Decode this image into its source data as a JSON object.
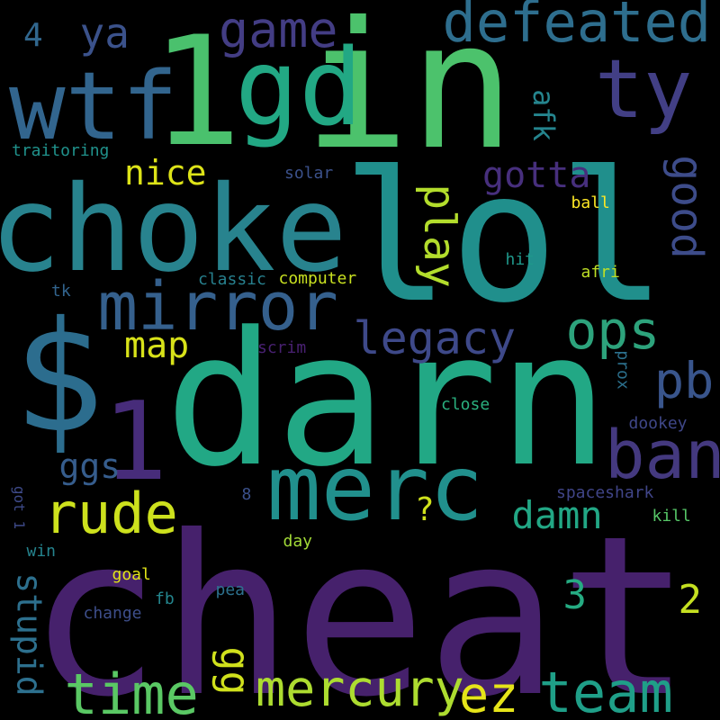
{
  "background": "#000000",
  "words": [
    {
      "text": "cheat",
      "color": "#46216c"
    },
    {
      "text": "darn",
      "color": "#22a885"
    },
    {
      "text": "lol",
      "color": "#208f8c"
    },
    {
      "text": "in",
      "color": "#4cc26c"
    },
    {
      "text": "$",
      "color": "#2c6d8e"
    },
    {
      "text": "1",
      "color": "#4ac16d"
    },
    {
      "text": "choke",
      "color": "#28838e"
    },
    {
      "text": "gd",
      "color": "#22a884"
    },
    {
      "text": "wtf",
      "color": "#32658e"
    },
    {
      "text": "merc",
      "color": "#21908d"
    },
    {
      "text": "mirror",
      "color": "#35608d"
    },
    {
      "text": "1",
      "color": "#472c7a"
    },
    {
      "text": "ty",
      "color": "#423f85"
    },
    {
      "text": "ban",
      "color": "#44397f"
    },
    {
      "text": "defeated",
      "color": "#2e6e8e"
    },
    {
      "text": "team",
      "color": "#1f9f88"
    },
    {
      "text": "time",
      "color": "#5ac864"
    },
    {
      "text": "rude",
      "color": "#cde11d"
    },
    {
      "text": "mercury",
      "color": "#addc30"
    },
    {
      "text": "game",
      "color": "#433d84"
    },
    {
      "text": "ops",
      "color": "#2da37c"
    },
    {
      "text": "legacy",
      "color": "#3e4989"
    },
    {
      "text": "ez",
      "color": "#e5e419"
    },
    {
      "text": "pb",
      "color": "#39558c"
    },
    {
      "text": "good",
      "color": "#3d4c8a"
    },
    {
      "text": "play",
      "color": "#b3dd2c"
    },
    {
      "text": "damn",
      "color": "#22a785"
    },
    {
      "text": "ya",
      "color": "#3b528b"
    },
    {
      "text": "stupid",
      "color": "#2d708e"
    },
    {
      "text": "gotta",
      "color": "#472f7d"
    },
    {
      "text": "map",
      "color": "#d8e219"
    },
    {
      "text": "gg",
      "color": "#d0e11c"
    },
    {
      "text": "ggs",
      "color": "#365d8d"
    },
    {
      "text": "nice",
      "color": "#dde318"
    },
    {
      "text": "afk",
      "color": "#25858e"
    },
    {
      "text": "3",
      "color": "#25ab82"
    },
    {
      "text": "2",
      "color": "#c5e021"
    },
    {
      "text": "?",
      "color": "#cfe11c"
    },
    {
      "text": "4",
      "color": "#31678e"
    },
    {
      "text": "traitoring",
      "color": "#20928c"
    },
    {
      "text": "solar",
      "color": "#3b518b"
    },
    {
      "text": "ball",
      "color": "#fde725"
    },
    {
      "text": "classic",
      "color": "#27808e"
    },
    {
      "text": "computer",
      "color": "#c8e020"
    },
    {
      "text": "hit",
      "color": "#1f988b"
    },
    {
      "text": "afri",
      "color": "#bddf26"
    },
    {
      "text": "tk",
      "color": "#32648e"
    },
    {
      "text": "scrim",
      "color": "#482071"
    },
    {
      "text": "prox",
      "color": "#2c718e"
    },
    {
      "text": "close",
      "color": "#2ab07f"
    },
    {
      "text": "dookey",
      "color": "#3f4788"
    },
    {
      "text": "8",
      "color": "#3b518b"
    },
    {
      "text": "spaceshark",
      "color": "#404588"
    },
    {
      "text": "got 1",
      "color": "#3e4a89"
    },
    {
      "text": "kill",
      "color": "#56c667"
    },
    {
      "text": "win",
      "color": "#25848e"
    },
    {
      "text": "day",
      "color": "#a2da37"
    },
    {
      "text": "goal",
      "color": "#e2e418"
    },
    {
      "text": "pea",
      "color": "#2d718e"
    },
    {
      "text": "fb",
      "color": "#24868e"
    },
    {
      "text": "change",
      "color": "#3d4e8a"
    }
  ]
}
